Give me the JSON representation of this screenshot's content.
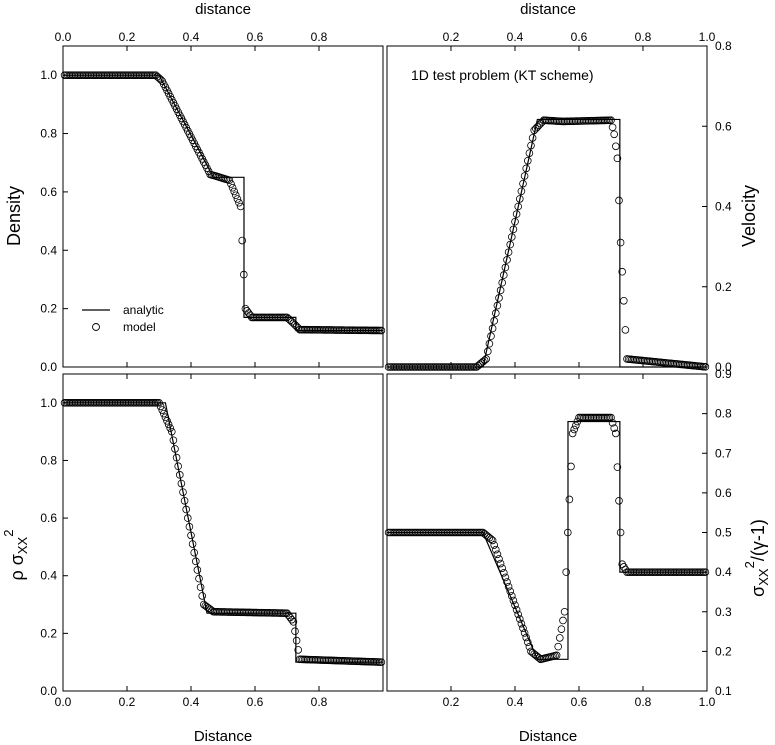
{
  "chart_data": [
    {
      "type": "line",
      "panel": "top-left",
      "ylabel": "Density",
      "x_top_label": "distance",
      "xlim": [
        0,
        1.0
      ],
      "ylim": [
        0,
        1.1
      ],
      "x_ticks": [
        "0.0",
        "0.2",
        "0.4",
        "0.6",
        "0.8"
      ],
      "y_ticks": [
        "0.0",
        "0.2",
        "0.4",
        "0.6",
        "0.8",
        "1.0"
      ],
      "grid": false,
      "legend": {
        "placement": "bottom-left",
        "entries": [
          {
            "label": "analytic",
            "marker": "line"
          },
          {
            "label": "model",
            "marker": "circle"
          }
        ]
      },
      "series": [
        {
          "name": "analytic",
          "style": "line",
          "x": [
            0,
            0.3,
            0.47,
            0.5656,
            0.5656,
            0.7277,
            0.7277,
            1.0
          ],
          "y": [
            1.0,
            1.0,
            0.65,
            0.65,
            0.17,
            0.17,
            0.125,
            0.125
          ]
        },
        {
          "name": "model",
          "style": "circles",
          "x": [
            0,
            0.29,
            0.31,
            0.46,
            0.49,
            0.52,
            0.555,
            0.57,
            0.59,
            0.7,
            0.72,
            0.74,
            1.0
          ],
          "y": [
            1.0,
            1.0,
            0.98,
            0.66,
            0.65,
            0.64,
            0.55,
            0.2,
            0.17,
            0.17,
            0.15,
            0.128,
            0.125
          ]
        }
      ]
    },
    {
      "type": "line",
      "panel": "top-right",
      "ylabel": "Velocity",
      "x_top_label": "distance",
      "annotation": "1D test problem (KT scheme)",
      "xlim": [
        0,
        1.0
      ],
      "ylim": [
        0,
        0.8
      ],
      "x_ticks": [
        "0.2",
        "0.4",
        "0.6",
        "0.8",
        "1.0"
      ],
      "y_ticks": [
        "0.0",
        "0.2",
        "0.4",
        "0.6",
        "0.8"
      ],
      "grid": false,
      "series": [
        {
          "name": "analytic",
          "style": "line",
          "x": [
            0,
            0.3,
            0.47,
            0.7277,
            0.7277,
            1.0
          ],
          "y": [
            0,
            0,
            0.617,
            0.617,
            0,
            0
          ]
        },
        {
          "name": "model",
          "style": "circles",
          "x": [
            0,
            0.28,
            0.31,
            0.46,
            0.49,
            0.55,
            0.7,
            0.71,
            0.72,
            0.73,
            0.75,
            1.0
          ],
          "y": [
            0,
            0,
            0.02,
            0.59,
            0.615,
            0.612,
            0.615,
            0.58,
            0.52,
            0.31,
            0.02,
            0
          ]
        }
      ]
    },
    {
      "type": "line",
      "panel": "bottom-left",
      "ylabel": "ρ σxx²",
      "xlabel": "Distance",
      "xlim": [
        0,
        1.0
      ],
      "ylim": [
        0,
        1.1
      ],
      "x_ticks": [
        "0.0",
        "0.2",
        "0.4",
        "0.6",
        "0.8"
      ],
      "y_ticks": [
        "0.0",
        "0.2",
        "0.4",
        "0.6",
        "0.8",
        "1.0"
      ],
      "grid": false,
      "series": [
        {
          "name": "analytic",
          "style": "line",
          "x": [
            0,
            0.32,
            0.45,
            0.7277,
            0.7277,
            1.0
          ],
          "y": [
            1.0,
            1.0,
            0.27,
            0.27,
            0.1,
            0.1
          ]
        },
        {
          "name": "model",
          "style": "circles",
          "x": [
            0,
            0.3,
            0.34,
            0.44,
            0.47,
            0.7,
            0.72,
            0.74,
            1.0
          ],
          "y": [
            1.0,
            1.0,
            0.9,
            0.3,
            0.275,
            0.27,
            0.24,
            0.11,
            0.1
          ]
        }
      ]
    },
    {
      "type": "line",
      "panel": "bottom-right",
      "ylabel": "σxx²/(γ-1)",
      "xlabel": "Distance",
      "xlim": [
        0,
        1.0
      ],
      "ylim": [
        0.1,
        0.9
      ],
      "x_ticks": [
        "0.2",
        "0.4",
        "0.6",
        "0.8",
        "1.0"
      ],
      "y_ticks": [
        "0.1",
        "0.2",
        "0.3",
        "0.4",
        "0.5",
        "0.6",
        "0.7",
        "0.8",
        "0.9"
      ],
      "grid": false,
      "series": [
        {
          "name": "analytic",
          "style": "line",
          "x": [
            0,
            0.3,
            0.47,
            0.5656,
            0.5656,
            0.7277,
            0.7277,
            1.0
          ],
          "y": [
            0.5,
            0.5,
            0.18,
            0.18,
            0.78,
            0.78,
            0.4,
            0.4
          ]
        },
        {
          "name": "model",
          "style": "circles",
          "x": [
            0,
            0.3,
            0.33,
            0.45,
            0.48,
            0.53,
            0.555,
            0.565,
            0.58,
            0.6,
            0.7,
            0.715,
            0.725,
            0.735,
            0.75,
            1.0
          ],
          "y": [
            0.5,
            0.5,
            0.48,
            0.2,
            0.18,
            0.19,
            0.3,
            0.5,
            0.75,
            0.79,
            0.79,
            0.75,
            0.58,
            0.42,
            0.4,
            0.4
          ]
        }
      ]
    }
  ]
}
